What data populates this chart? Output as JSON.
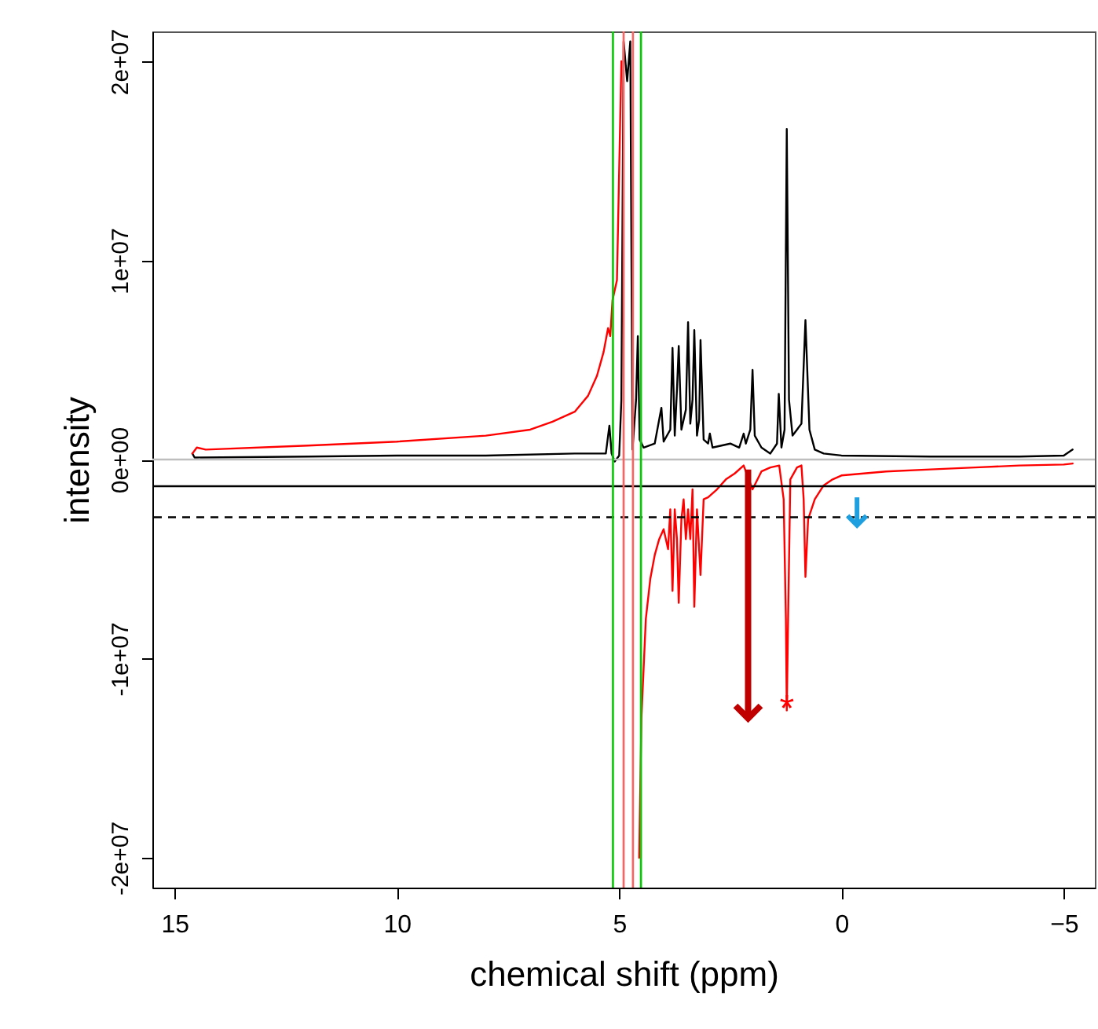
{
  "chart_data": {
    "type": "line",
    "xlabel": "chemical shift (ppm)",
    "ylabel": "intensity",
    "xlim": [
      15.5,
      -5.7
    ],
    "xticks": [
      15,
      10,
      5,
      0,
      -5
    ],
    "ylim": [
      -21500000,
      21500000
    ],
    "yticks": [
      {
        "value": 20000000,
        "label": "2e+07"
      },
      {
        "value": 10000000,
        "label": "1e+07"
      },
      {
        "value": 0,
        "label": "0e+00"
      },
      {
        "value": -10000000,
        "label": "-1e+07"
      },
      {
        "value": -20000000,
        "label": "-2e+07"
      }
    ],
    "grid": false,
    "line_style": "solid",
    "series": [
      {
        "color": "#000000",
        "x": [
          14.6,
          14.55,
          14.5,
          12,
          10,
          8,
          6,
          5.5,
          5.3,
          5.22,
          5.17,
          5.1,
          5.0,
          4.95,
          4.9,
          4.82,
          4.75,
          4.7,
          4.62,
          4.58,
          4.54,
          4.45,
          4.2,
          4.05,
          4.0,
          3.85,
          3.8,
          3.75,
          3.7,
          3.66,
          3.6,
          3.5,
          3.45,
          3.4,
          3.35,
          3.31,
          3.25,
          3.2,
          3.17,
          3.1,
          3.0,
          2.96,
          2.9,
          2.7,
          2.5,
          2.3,
          2.2,
          2.15,
          2.05,
          2.0,
          1.95,
          1.8,
          1.6,
          1.45,
          1.41,
          1.35,
          1.28,
          1.23,
          1.18,
          1.1,
          1.0,
          0.9,
          0.81,
          0.72,
          0.6,
          0.4,
          0,
          -2,
          -4,
          -5,
          -5.2
        ],
        "values": [
          300000,
          100000,
          100000,
          150000,
          200000,
          200000,
          300000,
          300000,
          300000,
          1700000,
          300000,
          -100000,
          200000,
          3000000,
          21000000,
          19000000,
          21000000,
          500000,
          3000000,
          6200000,
          1000000,
          600000,
          800000,
          2600000,
          900000,
          1500000,
          5600000,
          1200000,
          3500000,
          5700000,
          1500000,
          2500000,
          6900000,
          1800000,
          3000000,
          6500000,
          1200000,
          2000000,
          6000000,
          1000000,
          800000,
          1300000,
          600000,
          700000,
          800000,
          600000,
          1300000,
          800000,
          1500000,
          4500000,
          1200000,
          600000,
          300000,
          800000,
          3300000,
          600000,
          1500000,
          16600000,
          3000000,
          1200000,
          1500000,
          1800000,
          7000000,
          1500000,
          500000,
          300000,
          200000,
          150000,
          150000,
          200000,
          500000
        ]
      },
      {
        "color": "#ff0000",
        "x": [
          14.6,
          14.5,
          14.3,
          12,
          10,
          8,
          7,
          6.5,
          6,
          5.7,
          5.5,
          5.35,
          5.25,
          5.2,
          5.15,
          5.05,
          4.95,
          4.8,
          4.55,
          4.5,
          4.45,
          4.4,
          4.3,
          4.2,
          4.1,
          4.0,
          3.9,
          3.85,
          3.8,
          3.75,
          3.7,
          3.66,
          3.6,
          3.55,
          3.5,
          3.45,
          3.4,
          3.35,
          3.31,
          3.25,
          3.17,
          3.1,
          3.0,
          2.8,
          2.6,
          2.4,
          2.2,
          2.0,
          1.8,
          1.6,
          1.4,
          1.3,
          1.25,
          1.23,
          1.2,
          1.15,
          1.0,
          0.9,
          0.85,
          0.81,
          0.75,
          0.6,
          0.4,
          0.2,
          0,
          -1,
          -2,
          -3,
          -4,
          -5,
          -5.2
        ],
        "values": [
          300000,
          600000,
          500000,
          700000,
          900000,
          1200000,
          1500000,
          1900000,
          2400000,
          3200000,
          4200000,
          5400000,
          6600000,
          6200000,
          8000000,
          9000000,
          20000000,
          null,
          -20000000,
          -13000000,
          -10500000,
          -8000000,
          -6000000,
          -4800000,
          -4000000,
          -3500000,
          -4500000,
          -2500000,
          -6600000,
          -2500000,
          -4000000,
          -7200000,
          -3000000,
          -2000000,
          -4000000,
          -2500000,
          -4000000,
          -1500000,
          -7400000,
          -2500000,
          -5800000,
          -2000000,
          -1900000,
          -1500000,
          -1000000,
          -700000,
          -300000,
          -1500000,
          -600000,
          -400000,
          -300000,
          -2000000,
          -8000000,
          -12600000,
          -8000000,
          -1000000,
          -400000,
          -300000,
          -2000000,
          -5900000,
          -3000000,
          -2000000,
          -1300000,
          -1000000,
          -800000,
          -600000,
          -500000,
          -400000,
          -300000,
          -250000,
          -200000
        ]
      }
    ],
    "ref_lines": [
      {
        "axis": "y",
        "value": 0,
        "color": "#bebebe"
      },
      {
        "axis": "y",
        "value": -1340000,
        "color": "#000000"
      },
      {
        "axis": "y",
        "value": -2900000,
        "color": "#000000",
        "line_style": "dashed"
      },
      {
        "axis": "x",
        "value": 5.14,
        "color": "#00cc00"
      },
      {
        "axis": "x",
        "value": 4.51,
        "color": "#00cc00"
      },
      {
        "axis": "x",
        "value": 4.9,
        "color": "#ff6060"
      },
      {
        "axis": "x",
        "value": 4.69,
        "color": "#ff6060"
      }
    ],
    "annotations": [
      {
        "text": "*",
        "x": 1.23,
        "y": -12600000
      }
    ]
  }
}
